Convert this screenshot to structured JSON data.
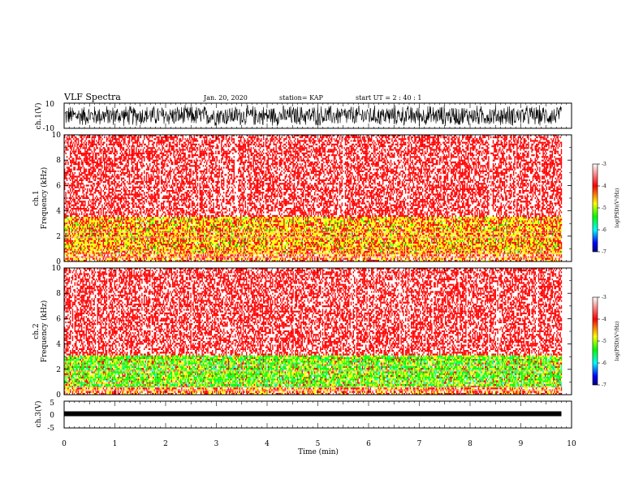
{
  "header": {
    "title": "VLF Spectra",
    "date": "Jan. 20, 2020",
    "station": "station= KAP",
    "start": "start  UT =   2 : 40 : 1"
  },
  "chart_data": [
    {
      "type": "line",
      "panel": "ch1-waveform",
      "ylabel": "ch.1(V)",
      "ylim": [
        -10,
        10
      ],
      "ytick_labels": [
        "10",
        "-10"
      ],
      "description_of_values": "dense noise-like waveform between about -9 and +9 V",
      "x": [
        0,
        1,
        2,
        3,
        4,
        5,
        6,
        7,
        8,
        9,
        9.8
      ],
      "series": [
        {
          "values": [
            2,
            -6,
            5,
            -7,
            4,
            -5,
            6,
            -4,
            5,
            -6,
            3
          ]
        }
      ]
    },
    {
      "type": "heatmap",
      "panel": "ch1-spectrogram",
      "ylabel": "ch.1 Frequency (kHz)",
      "ylim": [
        0,
        10
      ],
      "ytick_labels": [
        "0",
        "2",
        "4",
        "6",
        "8",
        "10"
      ],
      "xlim": [
        0,
        10
      ],
      "data_end_min": 9.8,
      "bands": [
        {
          "from_khz": 0.0,
          "to_khz": 0.5,
          "dominant": "mixed"
        },
        {
          "from_khz": 0.5,
          "to_khz": 1.0,
          "dominant": "red"
        },
        {
          "from_khz": 1.0,
          "to_khz": 3.4,
          "dominant": "yellow-red"
        },
        {
          "from_khz": 3.4,
          "to_khz": 10.0,
          "dominant": "red-white"
        }
      ],
      "colorbar": {
        "label": "log(PSD)(V²/Hz)",
        "ticks": [
          -3,
          -4,
          -5,
          -6,
          -7
        ],
        "range": [
          -7,
          -3
        ]
      }
    },
    {
      "type": "heatmap",
      "panel": "ch2-spectrogram",
      "ylabel": "ch.2 Frequency (kHz)",
      "ylim": [
        0,
        10
      ],
      "ytick_labels": [
        "0",
        "2",
        "4",
        "6",
        "8",
        "10"
      ],
      "xlim": [
        0,
        10
      ],
      "data_end_min": 9.8,
      "bands": [
        {
          "from_khz": 0.0,
          "to_khz": 0.5,
          "dominant": "mixed"
        },
        {
          "from_khz": 0.5,
          "to_khz": 3.0,
          "dominant": "green-yellow"
        },
        {
          "from_khz": 3.0,
          "to_khz": 10.0,
          "dominant": "red-white"
        }
      ],
      "colorbar": {
        "label": "log(PSD)(V²/Hz)",
        "ticks": [
          -3,
          -4,
          -5,
          -6,
          -7
        ],
        "range": [
          -7,
          -3
        ]
      }
    },
    {
      "type": "line",
      "panel": "ch3-waveform",
      "ylabel": "ch.3(V)",
      "ylim": [
        -5,
        5
      ],
      "ytick_labels": [
        "5",
        "0",
        "-5"
      ],
      "description_of_values": "nearly flat band centered about 0.3 V, amplitude about 0.3 V",
      "x": [
        0,
        9.8
      ],
      "series": [
        {
          "values": [
            0.3,
            0.3
          ]
        }
      ],
      "xlabel": "Time  (min)",
      "xlim": [
        0,
        10
      ],
      "xticks": [
        0,
        1,
        2,
        3,
        4,
        5,
        6,
        7,
        8,
        9,
        10
      ]
    }
  ],
  "colors": {
    "heat_white": "#ffffff",
    "heat_red": "#ff0000",
    "heat_yellow": "#ffff00",
    "heat_green": "#00ff00",
    "heat_cyan": "#00ffff",
    "heat_blue": "#0000ff",
    "heat_navy": "#000080",
    "trace": "#000000"
  }
}
